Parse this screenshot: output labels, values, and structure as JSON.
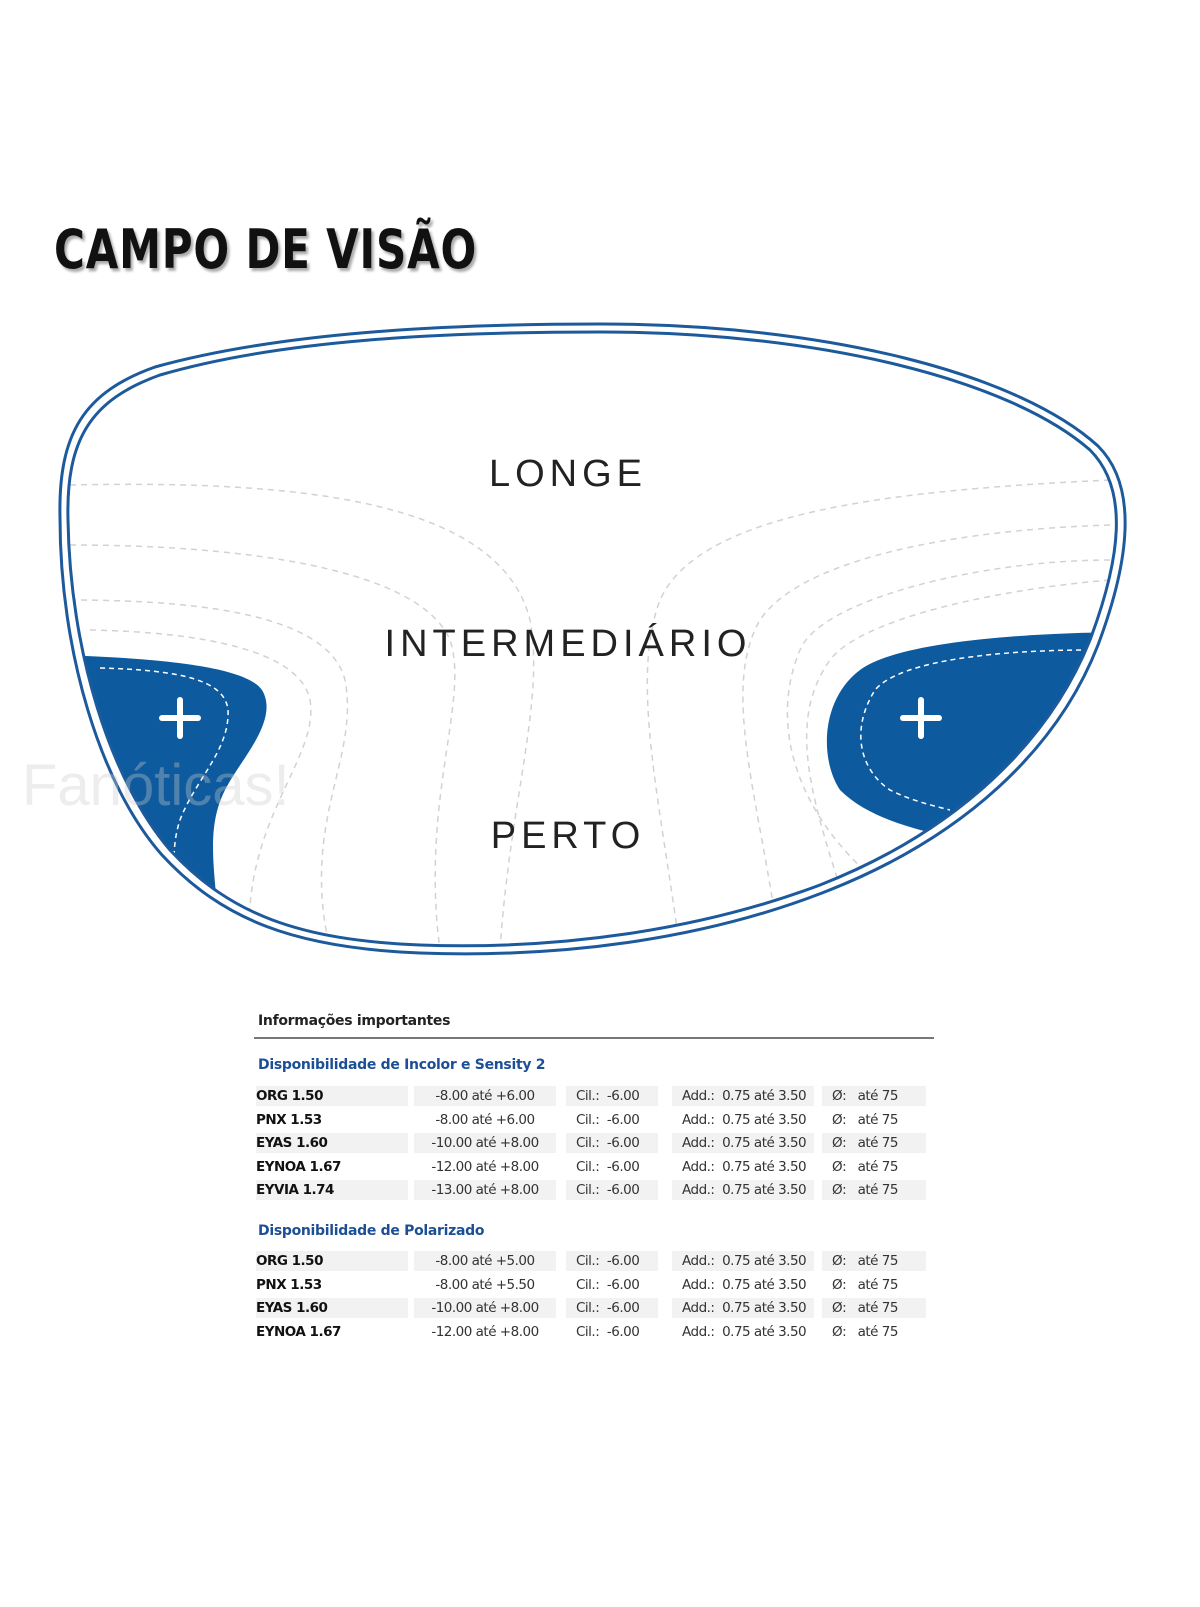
{
  "title": "CAMPO DE VISÃO",
  "watermark": "Fanóticas!",
  "diagram": {
    "zones": [
      "LONGE",
      "INTERMEDIÁRIO",
      "PERTO"
    ],
    "colors": {
      "outline": "#1c5a9c",
      "blur_zone": "#0e5a9e",
      "dashed": "#cfcfcf"
    },
    "icons": [
      "plus-icon",
      "plus-icon"
    ]
  },
  "info": {
    "title": "Informações importantes",
    "sections": [
      {
        "title": "Disponibilidade de Incolor e Sensity 2",
        "rows": [
          {
            "name": "ORG 1.50",
            "range": "-8.00 até +6.00",
            "cil_label": "Cil.:",
            "cil": "-6.00",
            "add_label": "Add.:",
            "add": "0.75 até 3.50",
            "diam_label": "Ø:",
            "diam": "até 75"
          },
          {
            "name": "PNX 1.53",
            "range": "-8.00 até +6.00",
            "cil_label": "Cil.:",
            "cil": "-6.00",
            "add_label": "Add.:",
            "add": "0.75 até 3.50",
            "diam_label": "Ø:",
            "diam": "até 75"
          },
          {
            "name": "EYAS 1.60",
            "range": "-10.00 até +8.00",
            "cil_label": "Cil.:",
            "cil": "-6.00",
            "add_label": "Add.:",
            "add": "0.75 até 3.50",
            "diam_label": "Ø:",
            "diam": "até 75"
          },
          {
            "name": "EYNOA 1.67",
            "range": "-12.00 até +8.00",
            "cil_label": "Cil.:",
            "cil": "-6.00",
            "add_label": "Add.:",
            "add": "0.75 até 3.50",
            "diam_label": "Ø:",
            "diam": "até 75"
          },
          {
            "name": "EYVIA 1.74",
            "range": "-13.00 até +8.00",
            "cil_label": "Cil.:",
            "cil": "-6.00",
            "add_label": "Add.:",
            "add": "0.75 até 3.50",
            "diam_label": "Ø:",
            "diam": "até 75"
          }
        ]
      },
      {
        "title": "Disponibilidade de Polarizado",
        "rows": [
          {
            "name": "ORG 1.50",
            "range": "-8.00 até +5.00",
            "cil_label": "Cil.:",
            "cil": "-6.00",
            "add_label": "Add.:",
            "add": "0.75 até 3.50",
            "diam_label": "Ø:",
            "diam": "até 75"
          },
          {
            "name": "PNX 1.53",
            "range": "-8.00 até +5.50",
            "cil_label": "Cil.:",
            "cil": "-6.00",
            "add_label": "Add.:",
            "add": "0.75 até 3.50",
            "diam_label": "Ø:",
            "diam": "até 75"
          },
          {
            "name": "EYAS 1.60",
            "range": "-10.00 até +8.00",
            "cil_label": "Cil.:",
            "cil": "-6.00",
            "add_label": "Add.:",
            "add": "0.75 até 3.50",
            "diam_label": "Ø:",
            "diam": "até 75"
          },
          {
            "name": "EYNOA 1.67",
            "range": "-12.00 até +8.00",
            "cil_label": "Cil.:",
            "cil": "-6.00",
            "add_label": "Add.:",
            "add": "0.75 até 3.50",
            "diam_label": "Ø:",
            "diam": "até 75"
          }
        ]
      }
    ]
  }
}
